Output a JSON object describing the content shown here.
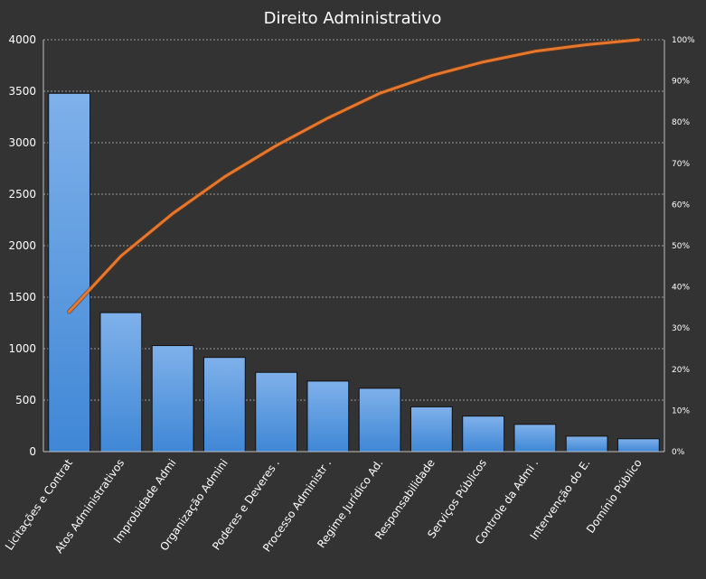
{
  "chart_data": {
    "type": "bar",
    "title": "Direito Administrativo",
    "categories": [
      "Licitações e Contrat",
      "Atos Administrativos",
      "Improbidade Admi",
      "Organização Admini",
      "Poderes e Deveres .",
      "Processo Administr .",
      "Regime Jurídico Ad.",
      "Responsabilidade",
      "Serviços Públicos",
      "Controle da Admi .",
      "Intervenção do E.",
      "Domínio Público"
    ],
    "series": [
      {
        "type": "bar",
        "values": [
          3480,
          1350,
          1030,
          915,
          770,
          685,
          615,
          435,
          345,
          265,
          150,
          125
        ],
        "color": "#4a90d9"
      },
      {
        "type": "line",
        "axis": "secondary",
        "values": [
          0.34,
          0.475,
          0.578,
          0.667,
          0.743,
          0.81,
          0.87,
          0.913,
          0.946,
          0.972,
          0.988,
          1.0
        ],
        "color": "#e8772e"
      }
    ],
    "ylim": [
      0,
      4000
    ],
    "yticks": [
      "0",
      "500",
      "1000",
      "1500",
      "2000",
      "2500",
      "3000",
      "3500",
      "4000"
    ],
    "y2lim": [
      0,
      1
    ],
    "y2ticks": [
      "0%",
      "10%",
      "20%",
      "30%",
      "40%",
      "50%",
      "60%",
      "70%",
      "80%",
      "90%",
      "100%"
    ],
    "grid": true,
    "legend": "none"
  }
}
